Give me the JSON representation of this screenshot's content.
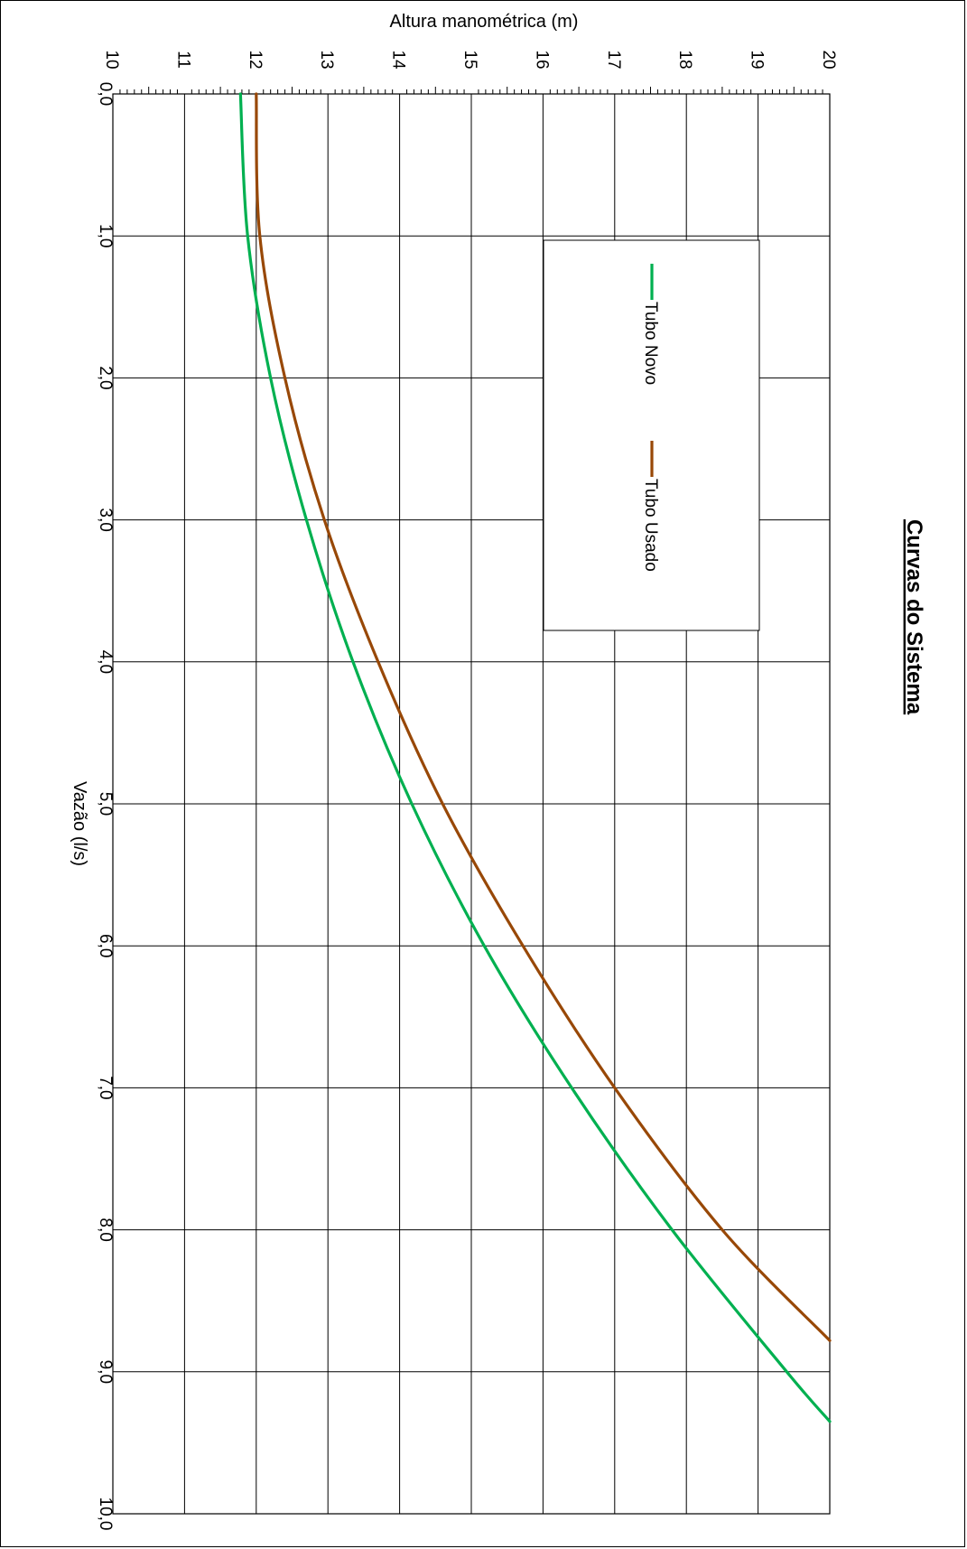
{
  "chart_data": {
    "type": "line",
    "title": "Curvas do Sistema",
    "xlabel": "Vazão (l/s)",
    "ylabel": "Altura manométrica (m)",
    "xlim": [
      0,
      10
    ],
    "ylim": [
      10,
      20
    ],
    "grid": true,
    "orientation": "rotated 90° clockwise",
    "legend_position": "top-left",
    "x_ticks": [
      "0,0",
      "1,0",
      "2,0",
      "3,0",
      "4,0",
      "5,0",
      "6,0",
      "7,0",
      "8,0",
      "9,0",
      "10,0"
    ],
    "y_ticks": [
      "10",
      "11",
      "12",
      "13",
      "14",
      "15",
      "16",
      "17",
      "18",
      "19",
      "20"
    ],
    "series": [
      {
        "name": "Tubo Novo",
        "color": "#00b050",
        "x": [
          0,
          1,
          2,
          3,
          4,
          5,
          6,
          7,
          8,
          9,
          9.35
        ],
        "y": [
          11.78,
          11.88,
          12.2,
          12.7,
          13.35,
          14.17,
          15.18,
          16.4,
          17.8,
          19.4,
          20.0
        ]
      },
      {
        "name": "Tubo Usado",
        "color": "#984807",
        "x": [
          0,
          1,
          2,
          3,
          4,
          5,
          6,
          7,
          8,
          8.78
        ],
        "y": [
          12.0,
          12.05,
          12.4,
          12.95,
          13.7,
          14.6,
          15.72,
          17.0,
          18.5,
          20.0
        ]
      }
    ]
  }
}
